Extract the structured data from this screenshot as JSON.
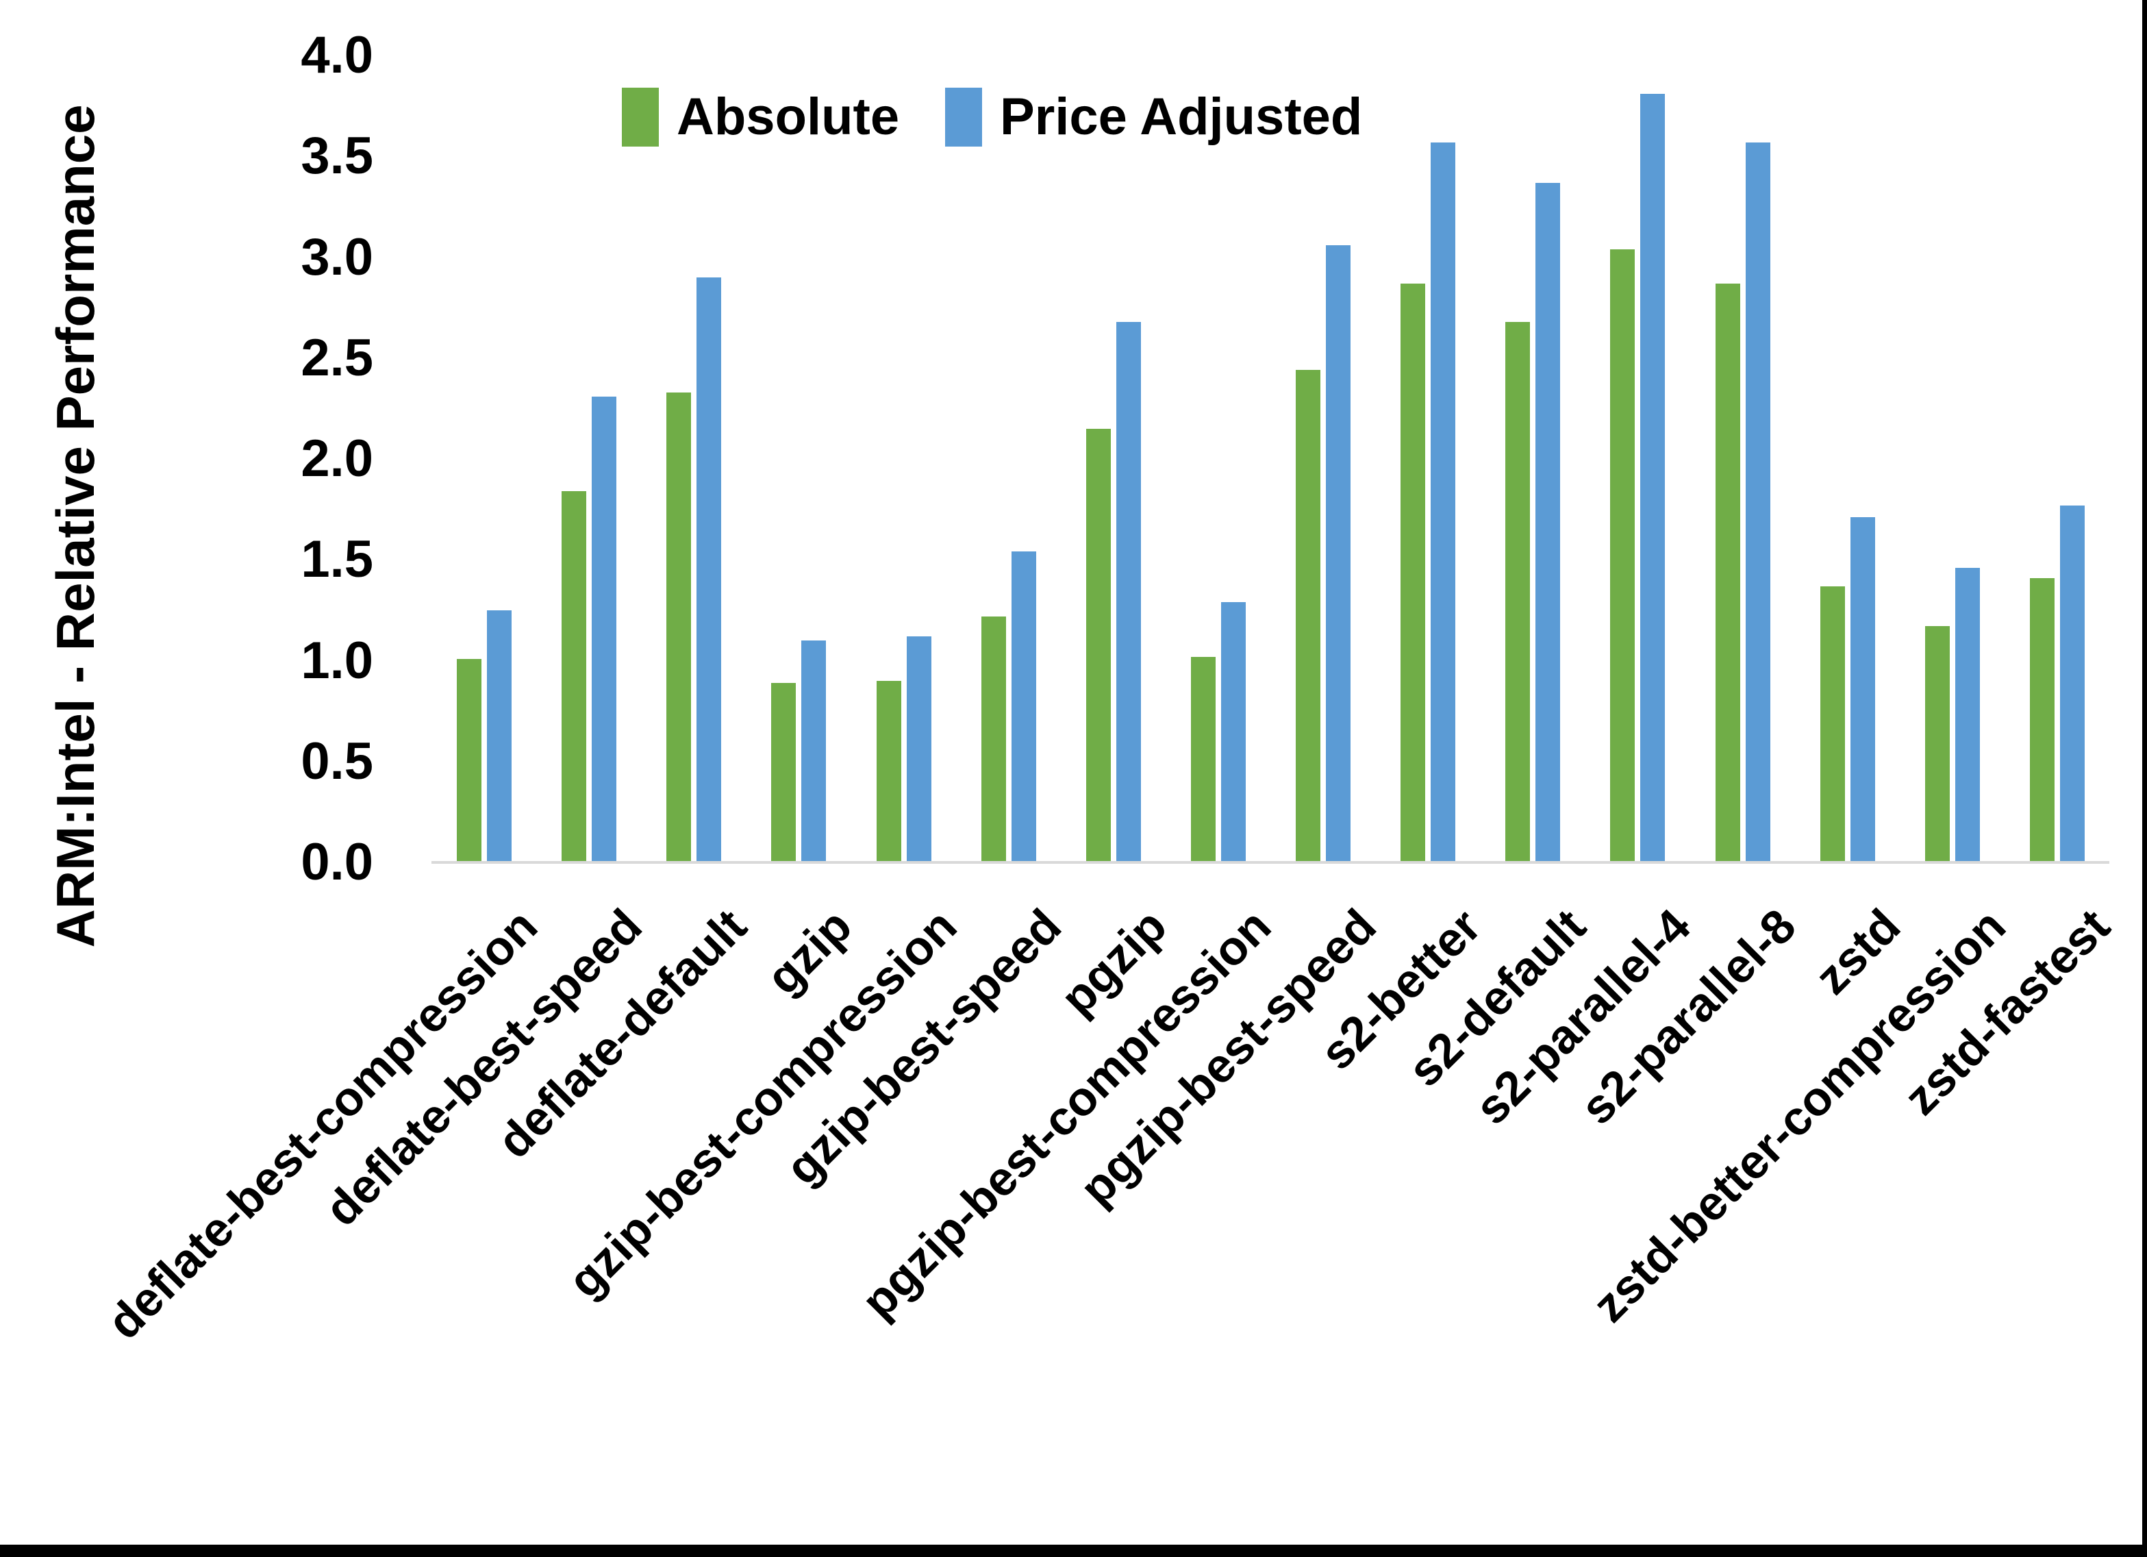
{
  "chart_data": {
    "type": "bar",
    "title": "",
    "ylabel": "ARM:Intel - Relative Performance",
    "xlabel": "",
    "ylim": [
      0.0,
      4.0
    ],
    "y_tick_labels": [
      "0.0",
      "0.5",
      "1.0",
      "1.5",
      "2.0",
      "2.5",
      "3.0",
      "3.5",
      "4.0"
    ],
    "grid": false,
    "legend_position": "top-center",
    "categories": [
      "deflate-best-compression",
      "deflate-best-speed",
      "deflate-default",
      "gzip",
      "gzip-best-compression",
      "gzip-best-speed",
      "pgzip",
      "pgzip-best-compression",
      "pgzip-best-speed",
      "s2-better",
      "s2-default",
      "s2-parallel-4",
      "s2-parallel-8",
      "zstd",
      "zstd-better-compression",
      "zstd-fastest"
    ],
    "series": [
      {
        "name": "Absolute",
        "color": "#70AD47",
        "values": [
          1.01,
          1.84,
          2.33,
          0.89,
          0.9,
          1.22,
          2.15,
          1.02,
          2.44,
          2.87,
          2.68,
          3.04,
          2.87,
          1.37,
          1.17,
          1.41
        ]
      },
      {
        "name": "Price Adjusted",
        "color": "#5B9BD5",
        "values": [
          1.25,
          2.31,
          2.9,
          1.1,
          1.12,
          1.54,
          2.68,
          1.29,
          3.06,
          3.57,
          3.37,
          3.81,
          3.57,
          1.71,
          1.46,
          1.77
        ]
      }
    ],
    "axis_line_color": "#D9D9D9",
    "text_color": "#000000",
    "background": "#FFFFFF"
  }
}
